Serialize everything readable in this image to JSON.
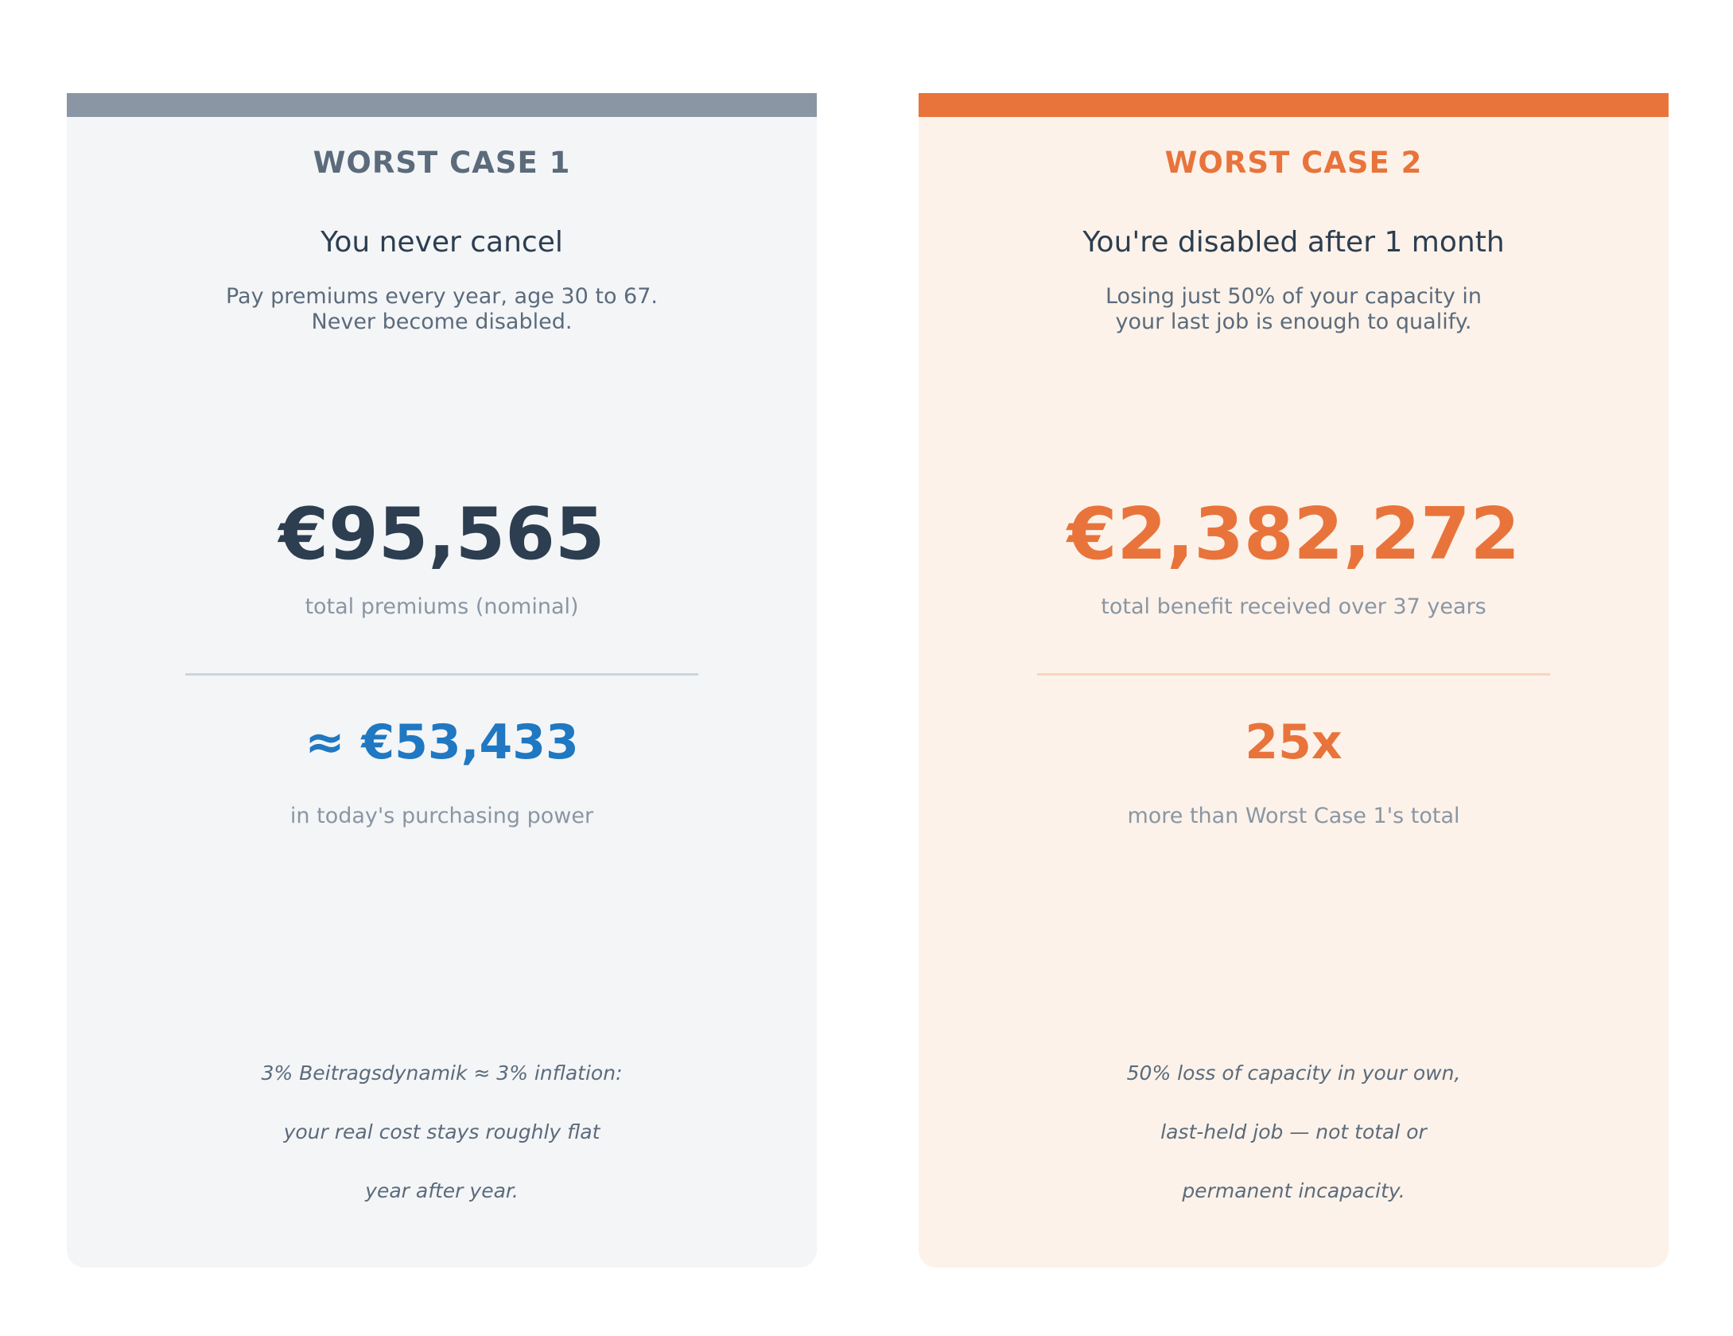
{
  "cards": [
    {
      "label": "WORST CASE 1",
      "headline": "You never cancel",
      "description": [
        "Pay premiums every year, age 30 to 67.",
        "Never become disabled."
      ],
      "primary_value": "€95,565",
      "primary_caption": "total premiums (nominal)",
      "secondary_value": "≈ €53,433",
      "secondary_caption": "in today's purchasing power",
      "note": [
        "3% Beitragsdynamik ≈ 3% inflation:",
        "your real cost stays roughly flat",
        "year after year."
      ],
      "accent_color": "#8a96a4"
    },
    {
      "label": "WORST CASE 2",
      "headline": "You're disabled after 1 month",
      "description": [
        "Losing just 50% of your capacity in",
        "your last job is enough to qualify."
      ],
      "primary_value": "€2,382,272",
      "primary_caption": "total benefit received over 37 years",
      "secondary_value": "25x",
      "secondary_caption": "more than Worst Case 1's total",
      "note": [
        "50% loss of capacity in your own,",
        "last-held job — not total or",
        "permanent incapacity."
      ],
      "accent_color": "#e8743b"
    }
  ]
}
